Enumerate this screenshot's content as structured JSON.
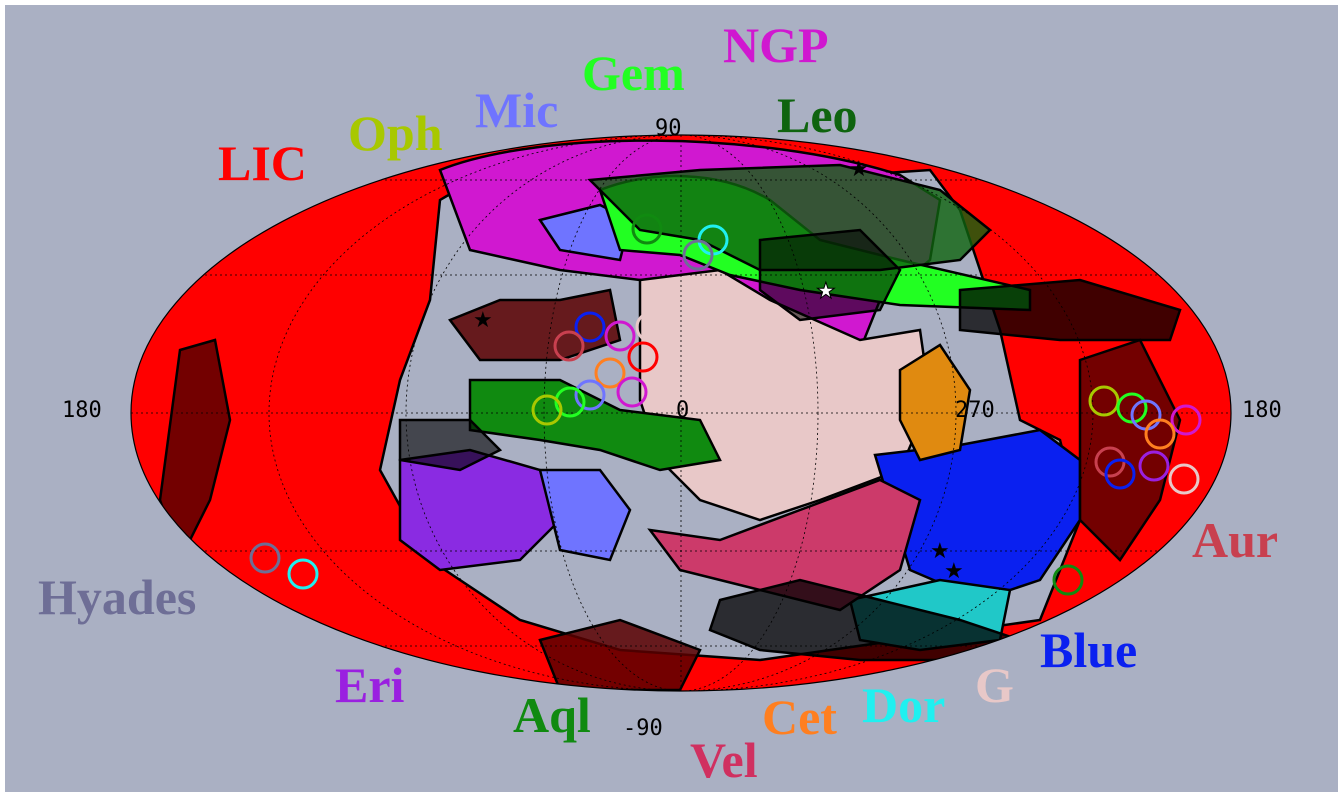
{
  "ticks": {
    "top": "90",
    "bottom": "-90",
    "left": "180",
    "right": "180",
    "center": "0",
    "mid_right": "270"
  },
  "clouds": [
    {
      "key": "lic",
      "label": "LIC",
      "color": "#ff0000"
    },
    {
      "key": "oph",
      "label": "Oph",
      "color": "#a8c800"
    },
    {
      "key": "mic",
      "label": "Mic",
      "color": "#6f74ff"
    },
    {
      "key": "gem",
      "label": "Gem",
      "color": "#22ff22"
    },
    {
      "key": "ngp",
      "label": "NGP",
      "color": "#d018d0"
    },
    {
      "key": "leo",
      "label": "Leo",
      "color": "#0f640f"
    },
    {
      "key": "aur",
      "label": "Aur",
      "color": "#c8404f"
    },
    {
      "key": "hyades",
      "label": "Hyades",
      "color": "#6e6e96"
    },
    {
      "key": "blue",
      "label": "Blue",
      "color": "#0a20f0"
    },
    {
      "key": "g",
      "label": "G",
      "color": "#e8c8c8"
    },
    {
      "key": "dor",
      "label": "Dor",
      "color": "#20f0f0"
    },
    {
      "key": "cet",
      "label": "Cet",
      "color": "#ff7f20"
    },
    {
      "key": "vel",
      "label": "Vel",
      "color": "#d03060"
    },
    {
      "key": "aql",
      "label": "Aql",
      "color": "#108a10"
    },
    {
      "key": "eri",
      "label": "Eri",
      "color": "#9a20e0"
    }
  ],
  "colors": {
    "background": "#aab0c3",
    "sphere": "#ff0000",
    "dark_region": "#5a0000"
  }
}
